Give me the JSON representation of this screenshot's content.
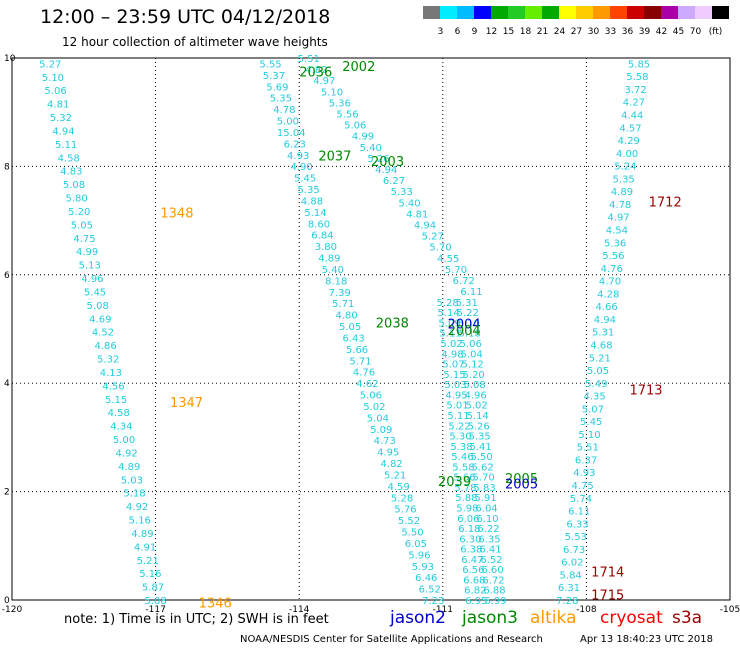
{
  "title": "12:00 – 23:59 UTC 04/12/2018",
  "subtitle": "12 hour collection of altimeter wave heights",
  "note": "note: 1) Time is in UTC; 2) SWH is in feet",
  "credit": "NOAA/NESDIS Center for Satellite Applications and Research",
  "timestamp": "Apr 13 18:40:23 UTC 2018",
  "satellites": [
    {
      "name": "jason2",
      "color": "#0000cc"
    },
    {
      "name": "jason3",
      "color": "#008800"
    },
    {
      "name": "altika",
      "color": "#ff9900"
    },
    {
      "name": "cryosat",
      "color": "#ff0000"
    },
    {
      "name": "s3a",
      "color": "#990000"
    }
  ],
  "colorbar": {
    "colors": [
      "#777777",
      "#00eeff",
      "#00bbff",
      "#0000ff",
      "#00aa00",
      "#22cc22",
      "#66ee00",
      "#00aa00",
      "#ffff00",
      "#ffcc00",
      "#ff9900",
      "#ff4400",
      "#cc0000",
      "#880000",
      "#aa00aa",
      "#ccaaff",
      "#eeccff",
      "#000000"
    ],
    "labels": [
      "3",
      "6",
      "9",
      "12",
      "15",
      "18",
      "21",
      "24",
      "27",
      "30",
      "33",
      "36",
      "39",
      "42",
      "45",
      "70",
      "(ft)"
    ]
  },
  "chart_data": {
    "type": "scatter",
    "title": "12:00 – 23:59 UTC 04/12/2018",
    "subtitle": "12 hour collection of altimeter wave heights",
    "xlim": [
      -120,
      -105
    ],
    "ylim": [
      0,
      10
    ],
    "x_ticks": [
      "-120",
      "-117",
      "-114",
      "-111",
      "-108",
      "-105"
    ],
    "y_ticks": [
      "0",
      "2",
      "4",
      "6",
      "8",
      "10"
    ],
    "grid": true,
    "point_color": "#22ccdd",
    "tracks": [
      {
        "satellite": "altika",
        "x0": -119.2,
        "y0": 9.9,
        "x1": -117.0,
        "y1": 0.0,
        "values": [
          "5.27",
          "5.10",
          "5.06",
          "4.81",
          "5.32",
          "4.94",
          "5.11",
          "4.58",
          "4.83",
          "5.08",
          "5.80",
          "5.20",
          "5.05",
          "4.75",
          "4.99",
          "5.13",
          "4.96",
          "5.45",
          "5.08",
          "4.69",
          "4.52",
          "4.86",
          "5.32",
          "4.13",
          "4.56",
          "5.15",
          "4.58",
          "4.34",
          "5.00",
          "4.92",
          "4.89",
          "5.03",
          "5.18",
          "4.92",
          "5.16",
          "4.89",
          "4.91",
          "5.21",
          "5.16",
          "5.87",
          "5.08"
        ]
      },
      {
        "satellite": "jason3",
        "x0": -114.6,
        "y0": 9.9,
        "x1": -111.2,
        "y1": 0.0,
        "values": [
          "5.55",
          "5.37",
          "5.69",
          "5.35",
          "4.78",
          "5.00",
          "15.04",
          "6.23",
          "4.93",
          "4.90",
          "5.45",
          "5.35",
          "4.88",
          "5.14",
          "8.60",
          "6.84",
          "3.80",
          "4.89",
          "5.40",
          "8.18",
          "7.39",
          "5.71",
          "4.80",
          "5.05",
          "6.43",
          "5.66",
          "5.71",
          "4.76",
          "4.62",
          "5.06",
          "5.02",
          "5.04",
          "5.09",
          "4.73",
          "4.95",
          "4.82",
          "5.21",
          "4.59",
          "5.28",
          "5.76",
          "5.52",
          "5.50",
          "6.05",
          "5.96",
          "5.93",
          "6.46",
          "6.52",
          "7.23"
        ]
      },
      {
        "satellite": "jason3",
        "x0": -113.8,
        "y0": 10.0,
        "x1": -110.4,
        "y1": 5.7,
        "values": [
          "5.51",
          "4.82",
          "4.97",
          "5.10",
          "5.36",
          "5.56",
          "5.06",
          "4.99",
          "5.40",
          "5.26",
          "4.94",
          "6.27",
          "5.33",
          "5.40",
          "4.81",
          "4.94",
          "5.27",
          "5.70",
          "4.55",
          "5.70",
          "6.72",
          "6.11"
        ]
      },
      {
        "satellite": "jason3",
        "x0": -110.5,
        "y0": 5.5,
        "x1": -109.9,
        "y1": 0.0,
        "values": [
          "5.31",
          "5.22",
          "5.10",
          "5.18",
          "5.06",
          "5.04",
          "5.12",
          "5.20",
          "5.08",
          "4.96",
          "5.02",
          "5.14",
          "5.26",
          "5.35",
          "5.41",
          "5.50",
          "5.62",
          "5.70",
          "5.83",
          "5.91",
          "6.04",
          "6.10",
          "6.22",
          "6.35",
          "6.41",
          "6.52",
          "6.60",
          "6.72",
          "6.88",
          "6.99"
        ]
      },
      {
        "satellite": "jason2",
        "x0": -110.9,
        "y0": 5.5,
        "x1": -110.3,
        "y1": 0.0,
        "values": [
          "5.28",
          "5.14",
          "5.09",
          "5.11",
          "5.02",
          "4.98",
          "5.07",
          "5.15",
          "5.03",
          "4.95",
          "5.01",
          "5.11",
          "5.22",
          "5.30",
          "5.38",
          "5.46",
          "5.58",
          "5.66",
          "5.78",
          "5.88",
          "5.98",
          "6.06",
          "6.18",
          "6.30",
          "6.38",
          "6.47",
          "6.56",
          "6.68",
          "6.82",
          "6.95"
        ]
      },
      {
        "satellite": "s3a",
        "x0": -106.9,
        "y0": 9.9,
        "x1": -108.4,
        "y1": 0.0,
        "values": [
          "5.85",
          "5.58",
          "3.72",
          "4.27",
          "4.44",
          "4.57",
          "4.29",
          "4.00",
          "5.24",
          "5.35",
          "4.89",
          "4.78",
          "4.97",
          "4.54",
          "5.36",
          "5.56",
          "4.76",
          "4.70",
          "4.28",
          "4.66",
          "4.94",
          "5.31",
          "4.68",
          "5.21",
          "5.05",
          "5.49",
          "4.35",
          "5.07",
          "5.45",
          "5.10",
          "5.51",
          "6.37",
          "4.93",
          "4.75",
          "5.74",
          "6.11",
          "6.33",
          "5.53",
          "6.73",
          "6.02",
          "5.84",
          "6.31",
          "7.28"
        ]
      }
    ],
    "pass_labels": [
      {
        "text": "1348",
        "x": -116.9,
        "y": 7.15,
        "satellite": "altika"
      },
      {
        "text": "1347",
        "x": -116.7,
        "y": 3.65,
        "satellite": "altika"
      },
      {
        "text": "1346",
        "x": -116.1,
        "y": -0.05,
        "satellite": "altika"
      },
      {
        "text": "2036",
        "x": -114.0,
        "y": 9.75,
        "satellite": "jason3"
      },
      {
        "text": "2002",
        "x": -113.1,
        "y": 9.85,
        "satellite": "jason3"
      },
      {
        "text": "2037",
        "x": -113.6,
        "y": 8.2,
        "satellite": "jason3"
      },
      {
        "text": "2003",
        "x": -112.5,
        "y": 8.1,
        "satellite": "jason3"
      },
      {
        "text": "2038",
        "x": -112.4,
        "y": 5.12,
        "satellite": "jason3"
      },
      {
        "text": "2004",
        "x": -110.9,
        "y": 5.1,
        "satellite": "jason2"
      },
      {
        "text": "2004",
        "x": -110.9,
        "y": 4.98,
        "satellite": "jason3"
      },
      {
        "text": "2039",
        "x": -111.1,
        "y": 2.2,
        "satellite": "jason3"
      },
      {
        "text": "2005",
        "x": -109.7,
        "y": 2.25,
        "satellite": "jason3"
      },
      {
        "text": "2005",
        "x": -109.7,
        "y": 2.15,
        "satellite": "jason2"
      },
      {
        "text": "1712",
        "x": -106.7,
        "y": 7.35,
        "satellite": "s3a"
      },
      {
        "text": "1713",
        "x": -107.1,
        "y": 3.88,
        "satellite": "s3a"
      },
      {
        "text": "1714",
        "x": -107.9,
        "y": 0.53,
        "satellite": "s3a"
      },
      {
        "text": "1715",
        "x": -107.9,
        "y": 0.1,
        "satellite": "s3a"
      }
    ]
  }
}
